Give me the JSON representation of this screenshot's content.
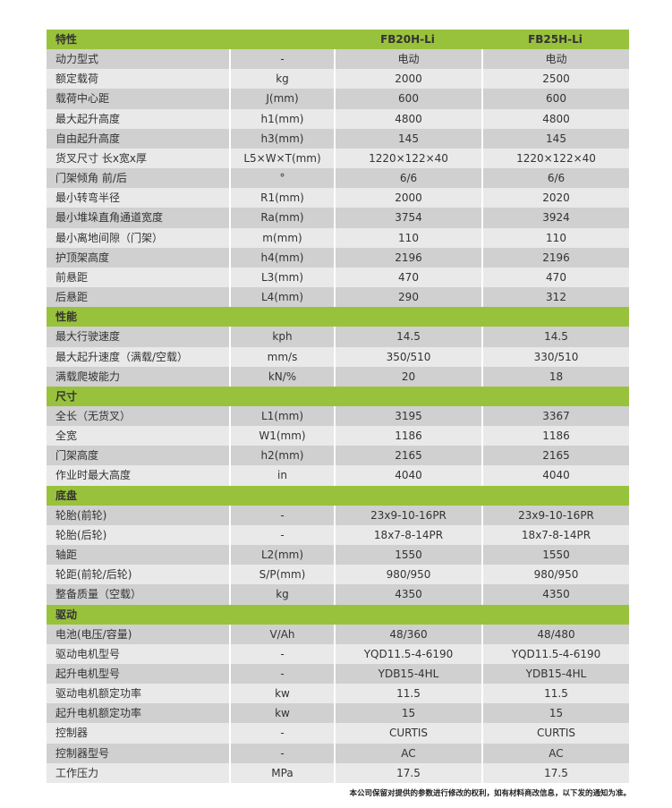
{
  "colors": {
    "section_header": "#99c23c",
    "row_dark": "#d0d0d0",
    "row_light": "#e9e9e9"
  },
  "models": [
    "FB20H-Li",
    "FB25H-Li"
  ],
  "sections": [
    {
      "title": "特性",
      "rows": [
        [
          "动力型式",
          "-",
          "电动",
          "电动"
        ],
        [
          "额定载荷",
          "kg",
          "2000",
          "2500"
        ],
        [
          "载荷中心距",
          "J(mm)",
          "600",
          "600"
        ],
        [
          "最大起升高度",
          "h1(mm)",
          "4800",
          "4800"
        ],
        [
          "自由起升高度",
          "h3(mm)",
          "145",
          "145"
        ],
        [
          "货叉尺寸 长x宽x厚",
          "L5×W×T(mm)",
          "1220×122×40",
          "1220×122×40"
        ],
        [
          "门架倾角 前/后",
          "°",
          "6/6",
          "6/6"
        ],
        [
          "最小转弯半径",
          "R1(mm)",
          "2000",
          "2020"
        ],
        [
          "最小堆垛直角通道宽度",
          "Ra(mm)",
          "3754",
          "3924"
        ],
        [
          "最小离地间隙（门架）",
          "m(mm)",
          "110",
          "110"
        ],
        [
          "护顶架高度",
          "h4(mm)",
          "2196",
          "2196"
        ],
        [
          "前悬距",
          "L3(mm)",
          "470",
          "470"
        ],
        [
          "后悬距",
          "L4(mm)",
          "290",
          "312"
        ]
      ]
    },
    {
      "title": "性能",
      "rows": [
        [
          "最大行驶速度",
          "kph",
          "14.5",
          "14.5"
        ],
        [
          "最大起升速度（满载/空载）",
          "mm/s",
          "350/510",
          "330/510"
        ],
        [
          "满载爬坡能力",
          "kN/%",
          "20",
          "18"
        ]
      ]
    },
    {
      "title": "尺寸",
      "rows": [
        [
          "全长（无货叉）",
          "L1(mm)",
          "3195",
          "3367"
        ],
        [
          "全宽",
          "W1(mm)",
          "1186",
          "1186"
        ],
        [
          "门架高度",
          "h2(mm)",
          "2165",
          "2165"
        ],
        [
          "作业时最大高度",
          "in",
          "4040",
          "4040"
        ]
      ]
    },
    {
      "title": "底盘",
      "rows": [
        [
          "轮胎(前轮)",
          "-",
          "23x9-10-16PR",
          "23x9-10-16PR"
        ],
        [
          "轮胎(后轮)",
          "-",
          "18x7-8-14PR",
          "18x7-8-14PR"
        ],
        [
          "轴距",
          "L2(mm)",
          "1550",
          "1550"
        ],
        [
          "轮距(前轮/后轮)",
          "S/P(mm)",
          "980/950",
          "980/950"
        ],
        [
          "整备质量（空载）",
          "kg",
          "4350",
          "4350"
        ]
      ]
    },
    {
      "title": "驱动",
      "rows": [
        [
          "电池(电压/容量)",
          "V/Ah",
          "48/360",
          "48/480"
        ],
        [
          "驱动电机型号",
          "-",
          "YQD11.5-4-6190",
          "YQD11.5-4-6190"
        ],
        [
          "起升电机型号",
          "-",
          "YDB15-4HL",
          "YDB15-4HL"
        ],
        [
          "驱动电机额定功率",
          "kw",
          "11.5",
          "11.5"
        ],
        [
          "起升电机额定功率",
          "kw",
          "15",
          "15"
        ],
        [
          "控制器",
          "-",
          "CURTIS",
          "CURTIS"
        ],
        [
          "控制器型号",
          "-",
          "AC",
          "AC"
        ],
        [
          "工作压力",
          "MPa",
          "17.5",
          "17.5"
        ]
      ]
    }
  ],
  "footnote": "本公司保留对提供的参数进行修改的权利，如有材料商改信息，以下发的通知为准。"
}
